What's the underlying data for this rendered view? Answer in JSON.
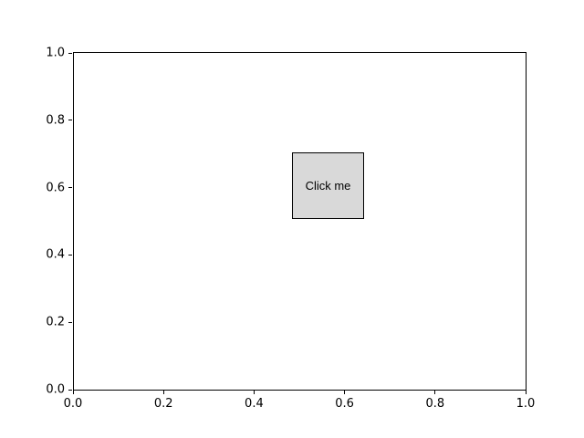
{
  "figure": {
    "background": "#ffffff",
    "spine_color": "#000000",
    "tick_color": "#000000"
  },
  "button": {
    "label": "Click me",
    "fill": "#d9d9d9",
    "border": "#000000",
    "text_color": "#000000"
  },
  "chart_data": {
    "type": "scatter",
    "title": "",
    "xlabel": "",
    "ylabel": "",
    "xlim": [
      0.0,
      1.0
    ],
    "ylim": [
      0.0,
      1.0
    ],
    "xtick_values": [
      0.0,
      0.2,
      0.4,
      0.6,
      0.8,
      1.0
    ],
    "xtick_labels": [
      "0.0",
      "0.2",
      "0.4",
      "0.6",
      "0.8",
      "1.0"
    ],
    "ytick_values": [
      0.0,
      0.2,
      0.4,
      0.6,
      0.8,
      1.0
    ],
    "ytick_labels": [
      "0.0",
      "0.2",
      "0.4",
      "0.6",
      "0.8",
      "1.0"
    ],
    "grid": false,
    "legend": null,
    "series": [],
    "widgets": [
      {
        "kind": "button",
        "label": "Click me",
        "x0": 0.484,
        "x1": 0.643,
        "y0": 0.506,
        "y1": 0.704
      }
    ]
  }
}
